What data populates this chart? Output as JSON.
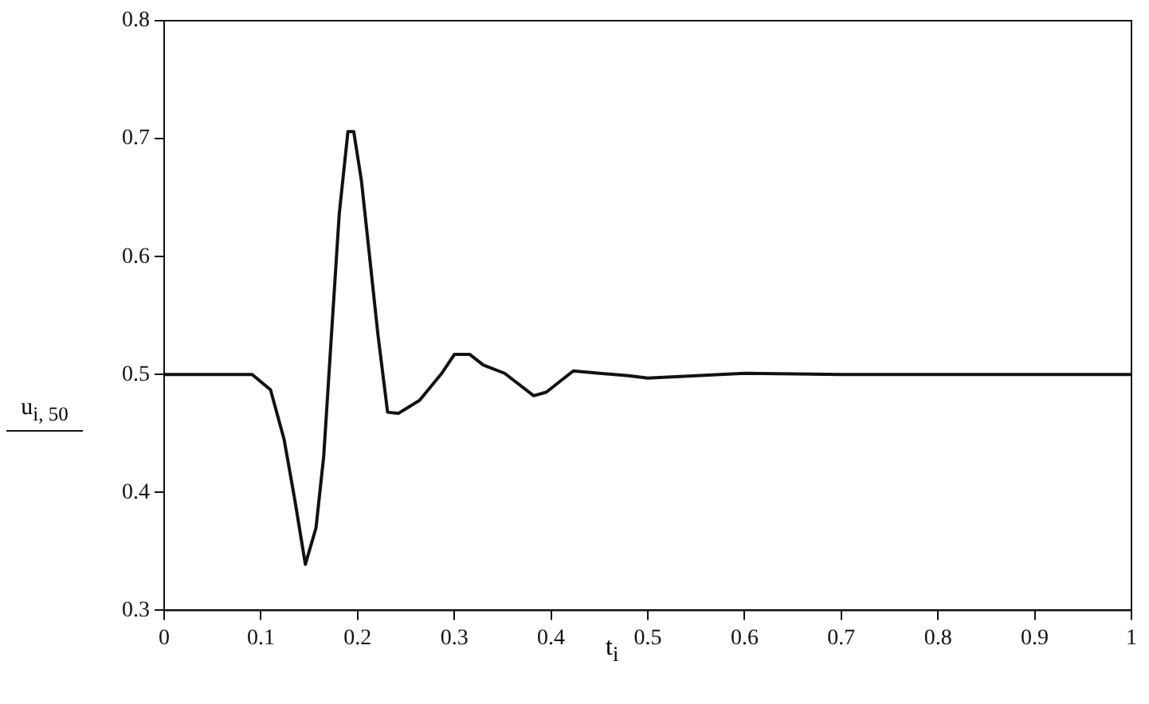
{
  "chart_data": {
    "type": "line",
    "xlabel": "t$_{i}$",
    "ylabel": "u$_{i, 50}$",
    "series": [
      {
        "color": "#111111",
        "x": [
          0,
          0.05,
          0.091,
          0.11,
          0.124,
          0.135,
          0.146,
          0.157,
          0.165,
          0.173,
          0.181,
          0.19,
          0.196,
          0.204,
          0.212,
          0.221,
          0.231,
          0.242,
          0.264,
          0.287,
          0.3,
          0.316,
          0.33,
          0.352,
          0.382,
          0.395,
          0.423,
          0.45,
          0.48,
          0.5,
          0.55,
          0.6,
          0.7,
          0.8,
          0.9,
          1
        ],
        "values": [
          0.5,
          0.5,
          0.5,
          0.487,
          0.445,
          0.394,
          0.339,
          0.37,
          0.431,
          0.534,
          0.636,
          0.706,
          0.706,
          0.664,
          0.603,
          0.534,
          0.468,
          0.467,
          0.478,
          0.501,
          0.517,
          0.517,
          0.508,
          0.501,
          0.482,
          0.485,
          0.503,
          0.501,
          0.499,
          0.497,
          0.499,
          0.501,
          0.5,
          0.5,
          0.5,
          0.5
        ]
      }
    ],
    "xlim": [
      0,
      1
    ],
    "xticks": [
      0,
      0.1,
      0.2,
      0.3,
      0.4,
      0.5,
      0.6,
      0.7,
      0.8,
      0.9,
      1
    ],
    "ylim": [
      0.3,
      0.8
    ],
    "yticks": [
      0.3,
      0.4,
      0.5,
      0.6,
      0.7,
      0.8
    ],
    "grid": false,
    "legend": false,
    "marker": "none",
    "line_style": "solid"
  }
}
